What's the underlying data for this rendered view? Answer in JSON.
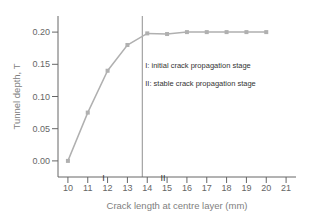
{
  "chart_data": {
    "type": "line",
    "xlabel": "Crack length at centre layer (mm)",
    "ylabel": "Tunnel depth, T",
    "x": [
      10,
      11,
      12,
      13,
      14,
      15,
      16,
      17,
      18,
      19,
      20
    ],
    "series": [
      {
        "values": [
          0.0,
          0.075,
          0.14,
          0.18,
          0.198,
          0.197,
          0.2,
          0.2,
          0.2,
          0.2,
          0.2
        ],
        "color": "#b0b0b0",
        "marker": "square"
      }
    ],
    "xlim": [
      9.5,
      21.5
    ],
    "ylim": [
      -0.025,
      0.225
    ],
    "xticks": [
      10,
      11,
      12,
      13,
      14,
      15,
      16,
      17,
      18,
      19,
      20,
      21
    ],
    "yticks": [
      {
        "value": 0,
        "label": "0.00"
      },
      0.05,
      {
        "value": 0.1,
        "label": "0.10"
      },
      0.15,
      {
        "value": 0.2,
        "label": "0.20"
      }
    ],
    "vline": {
      "x": 13.75,
      "color": "#909090"
    },
    "annotations": [
      {
        "text": "I",
        "x": 11.8,
        "y": -0.018,
        "align": "center"
      },
      {
        "text": "II",
        "x": 14.8,
        "y": -0.018,
        "align": "center"
      },
      {
        "text": "I: initial crack propagation stage",
        "x": 13.9,
        "y": 0.155,
        "align": "left"
      },
      {
        "text": "II: stable crack propagation stage",
        "x": 13.9,
        "y": 0.127,
        "align": "left"
      }
    ],
    "grid": false
  }
}
